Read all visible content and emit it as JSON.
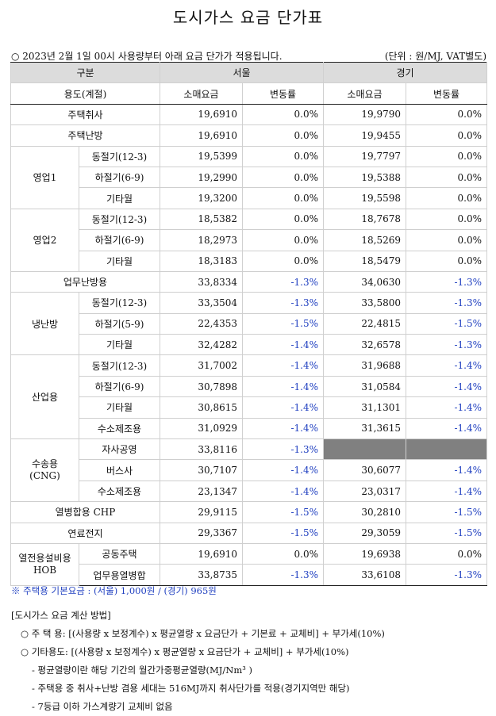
{
  "title": "도시가스 요금 단가표",
  "notice": "○ 2023년 2월 1일 00시 사용량부터 아래 요금 단가가 적용됩니다.",
  "unit": "(단위 : 원/MJ, VAT별도)",
  "headers": {
    "category": "구분",
    "seoul": "서울",
    "gyeonggi": "경기",
    "usage": "용도(계절)",
    "retail": "소매요금",
    "change": "변동률"
  },
  "rows": [
    {
      "group": "주택취사",
      "sub": "",
      "s_price": "19,6910",
      "s_rate": "0.0%",
      "g_price": "19,9790",
      "g_rate": "0.0%"
    },
    {
      "group": "주택난방",
      "sub": "",
      "s_price": "19,6910",
      "s_rate": "0.0%",
      "g_price": "19,9455",
      "g_rate": "0.0%"
    },
    {
      "group": "영업1",
      "sub": "동절기(12-3)",
      "s_price": "19,5399",
      "s_rate": "0.0%",
      "g_price": "19,7797",
      "g_rate": "0.0%"
    },
    {
      "group": "",
      "sub": "하절기(6-9)",
      "s_price": "19,2990",
      "s_rate": "0.0%",
      "g_price": "19,5388",
      "g_rate": "0.0%"
    },
    {
      "group": "",
      "sub": "기타월",
      "s_price": "19,3200",
      "s_rate": "0.0%",
      "g_price": "19,5598",
      "g_rate": "0.0%"
    },
    {
      "group": "영업2",
      "sub": "동절기(12-3)",
      "s_price": "18,5382",
      "s_rate": "0.0%",
      "g_price": "18,7678",
      "g_rate": "0.0%"
    },
    {
      "group": "",
      "sub": "하절기(6-9)",
      "s_price": "18,2973",
      "s_rate": "0.0%",
      "g_price": "18,5269",
      "g_rate": "0.0%"
    },
    {
      "group": "",
      "sub": "기타월",
      "s_price": "18,3183",
      "s_rate": "0.0%",
      "g_price": "18,5479",
      "g_rate": "0.0%"
    },
    {
      "group": "업무난방용",
      "sub": "",
      "s_price": "33,8334",
      "s_rate": "-1.3%",
      "g_price": "34,0630",
      "g_rate": "-1.3%"
    },
    {
      "group": "냉난방",
      "sub": "동절기(12-3)",
      "s_price": "33,3504",
      "s_rate": "-1.3%",
      "g_price": "33,5800",
      "g_rate": "-1.3%"
    },
    {
      "group": "",
      "sub": "하절기(5-9)",
      "s_price": "22,4353",
      "s_rate": "-1.5%",
      "g_price": "22,4815",
      "g_rate": "-1.5%"
    },
    {
      "group": "",
      "sub": "기타월",
      "s_price": "32,4282",
      "s_rate": "-1.4%",
      "g_price": "32,6578",
      "g_rate": "-1.3%"
    },
    {
      "group": "산업용",
      "sub": "동절기(12-3)",
      "s_price": "31,7002",
      "s_rate": "-1.4%",
      "g_price": "31,9688",
      "g_rate": "-1.4%"
    },
    {
      "group": "",
      "sub": "하절기(6-9)",
      "s_price": "30,7898",
      "s_rate": "-1.4%",
      "g_price": "31,0584",
      "g_rate": "-1.4%"
    },
    {
      "group": "",
      "sub": "기타월",
      "s_price": "30,8615",
      "s_rate": "-1.4%",
      "g_price": "31,1301",
      "g_rate": "-1.4%"
    },
    {
      "group": "",
      "sub": "수소제조용",
      "s_price": "31,0929",
      "s_rate": "-1.4%",
      "g_price": "31,3615",
      "g_rate": "-1.4%"
    },
    {
      "group": "수송용",
      "group2": "(CNG)",
      "sub": "자사공영",
      "s_price": "33,8116",
      "s_rate": "-1.3%",
      "g_price": "",
      "g_rate": ""
    },
    {
      "group": "",
      "sub": "버스사",
      "s_price": "30,7107",
      "s_rate": "-1.4%",
      "g_price": "30,6077",
      "g_rate": "-1.4%"
    },
    {
      "group": "",
      "sub": "수소제조용",
      "s_price": "23,1347",
      "s_rate": "-1.4%",
      "g_price": "23,0317",
      "g_rate": "-1.4%"
    },
    {
      "group": "열병합용 CHP",
      "sub": "",
      "s_price": "29,9115",
      "s_rate": "-1.5%",
      "g_price": "30,2810",
      "g_rate": "-1.5%"
    },
    {
      "group": "연료전지",
      "sub": "",
      "s_price": "29,3367",
      "s_rate": "-1.5%",
      "g_price": "29,3059",
      "g_rate": "-1.5%"
    },
    {
      "group": "열전용설비용",
      "group2": "HOB",
      "sub": "공동주택",
      "s_price": "19,6910",
      "s_rate": "0.0%",
      "g_price": "19,6938",
      "g_rate": "0.0%"
    },
    {
      "group": "",
      "sub": "업무용열병합",
      "s_price": "33,8735",
      "s_rate": "-1.3%",
      "g_price": "33,6108",
      "g_rate": "-1.3%"
    }
  ],
  "footnote": "※ 주택용 기본요금 : (서울) 1,000원 / (경기) 965원",
  "method": {
    "heading": "[도시가스 요금 계산 방법]",
    "line1": "○ 주 택 용: [(사용량 x 보정계수) x 평균열량 x 요금단가 + 기본료 + 교체비] + 부가세(10%)",
    "line2": "○ 기타용도: [(사용량 x 보정계수) x 평균열량 x 요금단가 + 교체비] + 부가세(10%)",
    "note1": "- 평균열량이란 해당 기간의 월간가중평균열량(MJ/Nm³ )",
    "note2": "- 주택용 중 취사+난방 겸용 세대는 516MJ까지 취사단가를 적용(경기지역만 해당)",
    "note3": "- 7등급 이하 가스계량기 교체비 없음"
  },
  "colors": {
    "negative": "#1f3fc0",
    "header_bg": "#dcdcdc",
    "blank_cell": "#808080"
  }
}
